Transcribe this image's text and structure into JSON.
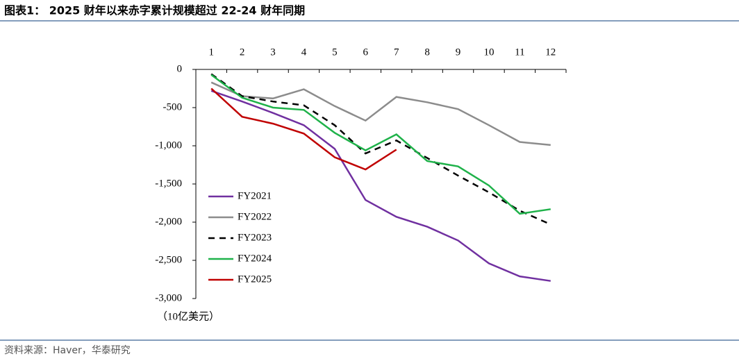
{
  "title": "图表1： 2025 财年以来赤字累计规模超过 22-24 财年同期",
  "source": "资料来源：Haver，华泰研究",
  "chart_data": {
    "type": "line",
    "y_label": "（10亿美元）",
    "categories": [
      "1",
      "2",
      "3",
      "4",
      "5",
      "6",
      "7",
      "8",
      "9",
      "10",
      "11",
      "12"
    ],
    "ylim": [
      -3000,
      0
    ],
    "yticks": [
      0,
      -500,
      {
        "value": -1000,
        "label": "-1,000"
      },
      {
        "value": -1500,
        "label": "-1,500"
      },
      {
        "value": -2000,
        "label": "-2,000"
      },
      {
        "value": -2500,
        "label": "-2,500"
      },
      {
        "value": -3000,
        "label": "-3,000"
      }
    ],
    "legend": "left",
    "series": [
      {
        "name": "FY2021",
        "color": "#7030a0",
        "values": [
          -280,
          -420,
          -570,
          -730,
          -1040,
          -1710,
          -1930,
          -2060,
          -2240,
          -2540,
          -2710,
          -2770
        ]
      },
      {
        "name": "FY2022",
        "color": "#8c8c8c",
        "values": [
          -170,
          -350,
          -380,
          -260,
          -480,
          -670,
          -360,
          -430,
          -520,
          -730,
          -950,
          -990
        ]
      },
      {
        "name": "FY2023",
        "color": "#000000",
        "dashed": true,
        "values": [
          -60,
          -350,
          -420,
          -470,
          -730,
          -1100,
          -930,
          -1160,
          -1390,
          -1610,
          -1850,
          -2030
        ]
      },
      {
        "name": "FY2024",
        "color": "#1fb24a",
        "values": [
          -70,
          -370,
          -500,
          -530,
          -830,
          -1060,
          -850,
          -1200,
          -1270,
          -1520,
          -1890,
          -1830
        ]
      },
      {
        "name": "FY2025",
        "color": "#c00000",
        "values": [
          -250,
          -620,
          -710,
          -840,
          -1150,
          -1310,
          -1050,
          null,
          null,
          null,
          null,
          null
        ]
      }
    ]
  }
}
